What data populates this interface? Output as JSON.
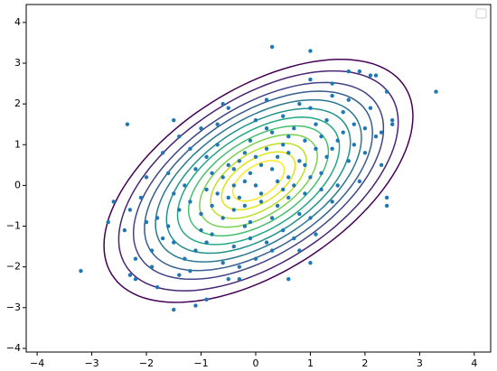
{
  "chart_data": {
    "type": "scatter",
    "color": "#1f77b4",
    "legend": "upper right",
    "xlim": [
      -4.2,
      4.3
    ],
    "ylim": [
      -4.09,
      4.44
    ],
    "xticks": [
      {
        "value": -4,
        "label": "−4"
      },
      {
        "value": -3,
        "label": "−3"
      },
      {
        "value": -2,
        "label": "−2"
      },
      {
        "value": -1,
        "label": "−1"
      },
      0,
      1,
      2,
      3,
      4
    ],
    "yticks": [
      {
        "value": -4,
        "label": "−4"
      },
      {
        "value": -3,
        "label": "−3"
      },
      {
        "value": -2,
        "label": "−2"
      },
      {
        "value": -1,
        "label": "−1"
      },
      0,
      1,
      2,
      3,
      4
    ],
    "x": [
      -0.2,
      0.3,
      -0.5,
      0.8,
      -1.0,
      0.1,
      0.5,
      -0.3,
      1.2,
      -0.8,
      0.0,
      0.4,
      -0.6,
      1.5,
      -1.4,
      0.7,
      -0.1,
      0.9,
      -1.1,
      1.8,
      -1.7,
      0.2,
      -0.4,
      1.1,
      -0.9,
      0.6,
      -0.2,
      0.3,
      1.4,
      -1.3,
      2.0,
      -2.0,
      0.5,
      -0.7,
      1.6,
      -1.5,
      0.0,
      -0.3,
      2.2,
      -1.9,
      1.0,
      -1.2,
      0.8,
      -0.6,
      1.3,
      -1.6,
      0.2,
      -0.1,
      1.9,
      -2.1,
      0.4,
      -0.4,
      0.6,
      -0.8,
      1.2,
      -1.0,
      0.1,
      -0.2,
      0.9,
      -0.5,
      1.7,
      -1.8,
      0.3,
      -0.9,
      1.0,
      -1.1,
      2.1,
      -2.2,
      0.7,
      -0.7,
      1.5,
      -1.4,
      0.0,
      0.5,
      1.1,
      -1.2,
      2.3,
      -2.3,
      0.2,
      -0.3,
      1.4,
      -1.6,
      0.8,
      -0.6,
      1.6,
      -1.3,
      0.4,
      -0.1,
      0.6,
      -0.4,
      1.3,
      -1.5,
      0.9,
      -0.8,
      0.1,
      -0.2,
      1.8,
      -1.7,
      0.3,
      -0.5,
      2.5,
      -2.4,
      1.2,
      -1.0,
      0.7,
      -0.3,
      0.0,
      1.0,
      -0.9,
      0.5,
      -0.7,
      1.7,
      -1.9,
      0.2,
      -0.1,
      1.4,
      -1.2,
      0.6,
      -0.4,
      2.0,
      -2.0,
      0.8,
      -0.6,
      1.1,
      -1.4,
      -3.2,
      0.3,
      1.0,
      3.3,
      2.5,
      2.4,
      1.7,
      -1.5,
      -1.1,
      -0.9,
      2.4,
      -2.6,
      -2.7,
      -2.35,
      -1.5,
      1.9,
      2.1,
      2.2,
      1.0,
      1.4,
      -1.8,
      -2.3,
      -2.2,
      -0.5,
      0.6,
      1.0,
      2.3,
      2.4
    ],
    "values": [
      0.1,
      0.4,
      -0.3,
      0.6,
      -0.7,
      -0.2,
      1.0,
      0.6,
      0.3,
      -1.2,
      0.0,
      -0.5,
      0.2,
      1.1,
      -0.6,
      1.4,
      -0.9,
      -0.2,
      0.4,
      1.5,
      -1.3,
      0.9,
      -1.5,
      0.9,
      -0.1,
      0.2,
      -0.5,
      1.3,
      -0.4,
      -1.8,
      0.8,
      -0.9,
      -1.1,
      1.0,
      1.8,
      -0.2,
      1.6,
      -2.0,
      1.2,
      -1.6,
      -0.8,
      0.9,
      2.0,
      -1.9,
      1.6,
      0.3,
      -1.4,
      1.1,
      0.1,
      -0.3,
      0.7,
      0.0,
      -0.3,
      -0.5,
      1.2,
      -1.1,
      0.5,
      -1.0,
      0.5,
      0.5,
      0.6,
      -0.8,
      -0.8,
      0.7,
      1.9,
      -1.6,
      1.9,
      -1.8,
      -1.3,
      1.5,
      0.0,
      1.2,
      -1.8,
      1.7,
      -1.2,
      -2.1,
      0.5,
      -0.6,
      2.1,
      -2.3,
      2.2,
      -1.0,
      -0.7,
      -0.8,
      1.3,
      0.0,
      0.1,
      0.3,
      0.8,
      -0.6,
      0.7,
      -1.4,
      1.1,
      0.3,
      -0.4,
      0.8,
      1.0,
      0.8,
      -1.6,
      1.9,
      1.6,
      -1.1,
      -0.1,
      1.4,
      0.0,
      -0.3,
      0.7,
      0.2,
      -1.4,
      -0.1,
      -0.2,
      2.1,
      -2.0,
      1.4,
      -1.3,
      0.9,
      -0.4,
      1.2,
      0.4,
      1.4,
      0.2,
      -1.6,
      2.0,
      1.5,
      -2.2,
      -2.1,
      3.4,
      3.3,
      2.3,
      1.5,
      2.3,
      2.8,
      -3.05,
      -2.95,
      -2.8,
      -0.5,
      -0.4,
      -0.9,
      1.5,
      1.6,
      2.8,
      2.7,
      2.7,
      2.6,
      2.5,
      -2.5,
      -2.2,
      -2.3,
      -2.3,
      -2.3,
      -1.9,
      1.3,
      -0.3
    ]
  }
}
